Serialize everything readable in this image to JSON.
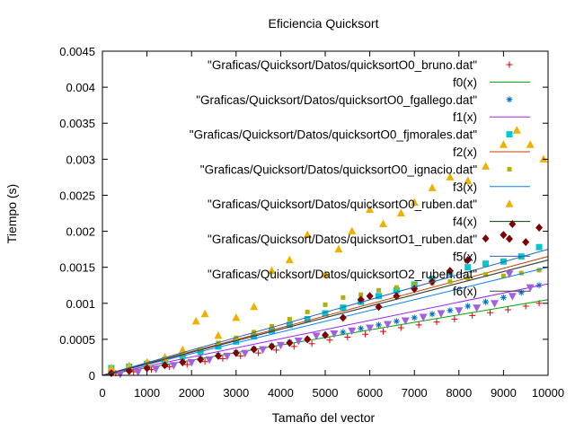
{
  "chart_data": {
    "type": "scatter",
    "title": "Eficiencia Quicksort",
    "xlabel": "Tamaño del vector",
    "ylabel": "Tiempo (s)",
    "xlim": [
      0,
      10000
    ],
    "ylim": [
      0,
      0.0045
    ],
    "xticks": [
      "0",
      "1000",
      "2000",
      "3000",
      "4000",
      "5000",
      "6000",
      "7000",
      "8000",
      "9000",
      "10000"
    ],
    "yticks": [
      "0",
      "0.0005",
      "0.001",
      "0.0015",
      "0.002",
      "0.0025",
      "0.003",
      "0.0035",
      "0.004",
      "0.0045"
    ],
    "grid": false,
    "legend_position": "top-right",
    "series": [
      {
        "name": "\"Graficas/Quicksort/Datos/quicksortO0_bruno.dat\"",
        "kind": "points",
        "marker": "plus",
        "color": "#e00000",
        "x": [
          300,
          700,
          1100,
          1500,
          1900,
          2300,
          2700,
          3100,
          3500,
          3900,
          4300,
          4700,
          5100,
          5500,
          5900,
          6300,
          6700,
          7100,
          7500,
          7900,
          8300,
          8700,
          9100,
          9500,
          9800
        ],
        "y": [
          3e-05,
          5e-05,
          8e-05,
          0.00012,
          0.00015,
          0.00019,
          0.00023,
          0.00027,
          0.00031,
          0.00035,
          0.0004,
          0.00044,
          0.00049,
          0.00053,
          0.00057,
          0.00061,
          0.00066,
          0.0007,
          0.00074,
          0.00078,
          0.00083,
          0.00087,
          0.00091,
          0.00096,
          0.001
        ]
      },
      {
        "name": "f0(x)",
        "kind": "line",
        "color": "#00a000",
        "x": [
          0,
          10000
        ],
        "y": [
          0,
          0.00105
        ]
      },
      {
        "name": "\"Graficas/Quicksort/Datos/quicksortO0_fgallego.dat\"",
        "kind": "points",
        "marker": "star",
        "color": "#0070c0",
        "x": [
          200,
          600,
          1000,
          1400,
          1800,
          2200,
          2600,
          3000,
          3400,
          3800,
          4200,
          4600,
          5000,
          5400,
          5800,
          6200,
          6600,
          7000,
          7400,
          7800,
          8200,
          8600,
          9000,
          9400,
          9800
        ],
        "y": [
          5e-05,
          8e-05,
          0.00011,
          0.00015,
          0.00019,
          0.00023,
          0.00028,
          0.00032,
          0.00037,
          0.00041,
          0.00046,
          0.0005,
          0.00055,
          0.0006,
          0.00065,
          0.0007,
          0.00075,
          0.0008,
          0.00085,
          0.0009,
          0.00096,
          0.00102,
          0.00108,
          0.00115,
          0.00125
        ]
      },
      {
        "name": "f1(x)",
        "kind": "line",
        "color": "#a020f0",
        "x": [
          0,
          10000
        ],
        "y": [
          0,
          0.00127
        ]
      },
      {
        "name": "\"Graficas/Quicksort/Datos/quicksortO0_fjmorales.dat\"",
        "kind": "points",
        "marker": "square",
        "color": "#00c8d0",
        "x": [
          200,
          600,
          1000,
          1400,
          1800,
          2200,
          2600,
          3000,
          3400,
          3800,
          4200,
          4600,
          5000,
          5400,
          5800,
          6200,
          6600,
          7000,
          7400,
          7800,
          8200,
          8600,
          9000,
          9400,
          9800
        ],
        "y": [
          0.0001,
          0.00012,
          0.00016,
          0.00021,
          0.00027,
          0.00033,
          0.0004,
          0.00047,
          0.00054,
          0.00062,
          0.0007,
          0.00078,
          0.00086,
          0.00094,
          0.00102,
          0.0011,
          0.00118,
          0.00126,
          0.00134,
          0.00142,
          0.0015,
          0.00155,
          0.00158,
          0.00165,
          0.00178
        ]
      },
      {
        "name": "f2(x)",
        "kind": "line",
        "color": "#c04000",
        "x": [
          0,
          10000
        ],
        "y": [
          0,
          0.00165
        ]
      },
      {
        "name": "\"Graficas/Quicksort/Datos/quicksortO0_ignacio.dat\"",
        "kind": "points",
        "marker": "square-small",
        "color": "#b0b000",
        "x": [
          200,
          600,
          1000,
          1400,
          1800,
          2200,
          2600,
          3000,
          3400,
          3800,
          4200,
          4600,
          5000,
          5400,
          5800,
          6200,
          6600,
          7000,
          7400,
          7800,
          8200,
          8600,
          9000,
          9400,
          9800
        ],
        "y": [
          6e-05,
          0.0001,
          0.00015,
          0.00021,
          0.00028,
          0.00036,
          0.00045,
          0.00052,
          0.0006,
          0.00068,
          0.00078,
          0.00088,
          0.00098,
          0.00108,
          0.00112,
          0.00118,
          0.00122,
          0.00126,
          0.00128,
          0.0013,
          0.00135,
          0.0014,
          0.00138,
          0.00142,
          0.00146
        ]
      },
      {
        "name": "f3(x)",
        "kind": "line",
        "color": "#0080ff",
        "x": [
          0,
          10000
        ],
        "y": [
          0,
          0.0015
        ]
      },
      {
        "name": "\"Graficas/Quicksort/Datos/quicksortO0_ruben.dat\"",
        "kind": "points",
        "marker": "triangle",
        "color": "#f0b000",
        "x": [
          200,
          600,
          1000,
          1400,
          1800,
          2100,
          2300,
          2600,
          3000,
          3400,
          3800,
          4200,
          4600,
          5000,
          5300,
          5600,
          6000,
          6300,
          6700,
          7000,
          7400,
          7800,
          8200,
          8600,
          9000,
          9300,
          9600,
          9900
        ],
        "y": [
          0.0001,
          0.00013,
          0.00018,
          0.00025,
          0.00035,
          0.00075,
          0.00085,
          0.00055,
          0.0008,
          0.00095,
          0.00145,
          0.0016,
          0.00195,
          0.0014,
          0.00175,
          0.002,
          0.0023,
          0.0021,
          0.00225,
          0.0024,
          0.0026,
          0.00275,
          0.0027,
          0.0029,
          0.0032,
          0.0034,
          0.0032,
          0.003
        ]
      },
      {
        "name": "f4(x)",
        "kind": "line",
        "color": "#004000",
        "x": [
          0,
          10000
        ],
        "y": [
          0,
          0.0016
        ]
      },
      {
        "name": "\"Graficas/Quicksort/Datos/quicksortO1_ruben.dat\"",
        "kind": "points",
        "marker": "diamond",
        "color": "#800000",
        "x": [
          200,
          600,
          1000,
          1400,
          1800,
          2200,
          2600,
          3000,
          3400,
          3800,
          4200,
          4600,
          5000,
          5400,
          5800,
          6000,
          6200,
          6600,
          7000,
          7400,
          7800,
          8200,
          8600,
          9000,
          9200,
          9500,
          9800
        ],
        "y": [
          3e-05,
          6e-05,
          0.0001,
          0.00014,
          0.00018,
          0.00022,
          0.00027,
          0.00031,
          0.00036,
          0.0004,
          0.00045,
          0.0005,
          0.00056,
          0.0008,
          0.00105,
          0.0011,
          0.00095,
          0.0011,
          0.0012,
          0.0013,
          0.00145,
          0.0016,
          0.0019,
          0.00195,
          0.0021,
          0.00185,
          0.00205
        ]
      },
      {
        "name": "f5(x)",
        "kind": "line",
        "color": "#3060b0",
        "x": [
          0,
          10000
        ],
        "y": [
          0,
          0.00175
        ]
      },
      {
        "name": "\"Graficas/Quicksort/Datos/quicksortO2_ruben.dat\"",
        "kind": "points",
        "marker": "triangle-down",
        "color": "#a060e0",
        "x": [
          400,
          800,
          1200,
          1600,
          2000,
          2400,
          2800,
          3200,
          3600,
          4000,
          4400,
          4800,
          5200,
          5600,
          6000,
          6400,
          6800,
          7200,
          7600,
          8000,
          8400,
          8800,
          9200,
          9600
        ],
        "y": [
          2e-05,
          5e-05,
          9e-05,
          0.00014,
          0.00018,
          0.00022,
          0.00027,
          0.00031,
          0.00036,
          0.00042,
          0.00048,
          0.00055,
          0.00058,
          0.00062,
          0.00066,
          0.00071,
          0.00076,
          0.00081,
          0.00086,
          0.0009,
          0.00094,
          0.001,
          0.0011,
          0.00122
        ]
      },
      {
        "name": "f6(x)",
        "kind": "line",
        "color": "#404040",
        "x": [
          0,
          10000
        ],
        "y": [
          0,
          0.0016
        ]
      }
    ]
  }
}
